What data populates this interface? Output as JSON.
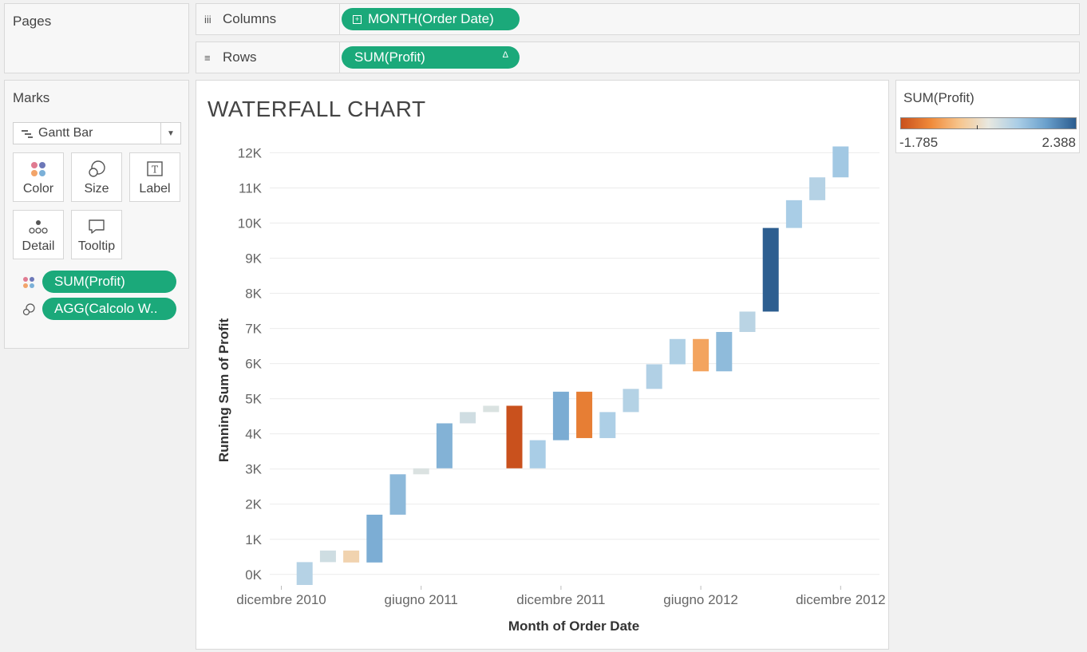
{
  "pages": {
    "title": "Pages"
  },
  "columns": {
    "label": "Columns",
    "pill": "MONTH(Order Date)"
  },
  "rows": {
    "label": "Rows",
    "pill": "SUM(Profit)",
    "pill_icon": "delta-icon"
  },
  "marks": {
    "title": "Marks",
    "mark_type": "Gantt Bar",
    "buttons": [
      {
        "label": "Color",
        "icon": "color-dots-icon"
      },
      {
        "label": "Size",
        "icon": "size-circles-icon"
      },
      {
        "label": "Label",
        "icon": "text-label-icon"
      },
      {
        "label": "Detail",
        "icon": "detail-dots-icon"
      },
      {
        "label": "Tooltip",
        "icon": "speech-bubble-icon"
      }
    ],
    "fields": [
      {
        "label": "SUM(Profit)",
        "icon": "color-dots-icon"
      },
      {
        "label": "AGG(Calcolo W..",
        "icon": "size-circles-icon"
      }
    ]
  },
  "legend": {
    "title": "SUM(Profit)",
    "min_label": "-1.785",
    "max_label": "2.388",
    "colors": [
      "#c9511d",
      "#f08a3a",
      "#f7c48b",
      "#e8e8e0",
      "#a9cde6",
      "#6aa0cc",
      "#2c5d8f"
    ]
  },
  "chart_data": {
    "type": "waterfall",
    "title": "WATERFALL CHART",
    "xlabel": "Month of Order Date",
    "ylabel": "Running Sum of Profit",
    "ylim": [
      -300,
      12600
    ],
    "yticks": [
      0,
      1000,
      2000,
      3000,
      4000,
      5000,
      6000,
      7000,
      8000,
      9000,
      10000,
      11000,
      12000
    ],
    "ytick_labels": [
      "0K",
      "1K",
      "2K",
      "3K",
      "4K",
      "5K",
      "6K",
      "7K",
      "8K",
      "9K",
      "10K",
      "11K",
      "12K"
    ],
    "xtick_labels": [
      "dicembre 2010",
      "giugno 2011",
      "dicembre 2011",
      "giugno 2012",
      "dicembre 2012"
    ],
    "xtick_month_index": [
      0,
      6,
      12,
      18,
      24
    ],
    "first_month_index": 1,
    "bars": [
      {
        "month": "gennaio 2011",
        "start": -300,
        "end": 350
      },
      {
        "month": "febbraio 2011",
        "start": 350,
        "end": 680
      },
      {
        "month": "marzo 2011",
        "start": 680,
        "end": 340
      },
      {
        "month": "aprile 2011",
        "start": 340,
        "end": 1700
      },
      {
        "month": "maggio 2011",
        "start": 1700,
        "end": 2850
      },
      {
        "month": "giugno 2011",
        "start": 2850,
        "end": 3020
      },
      {
        "month": "luglio 2011",
        "start": 3020,
        "end": 4300
      },
      {
        "month": "agosto 2011",
        "start": 4300,
        "end": 4620
      },
      {
        "month": "settembre 2011",
        "start": 4620,
        "end": 4800
      },
      {
        "month": "ottobre 2011",
        "start": 4800,
        "end": 3020
      },
      {
        "month": "novembre 2011",
        "start": 3020,
        "end": 3820
      },
      {
        "month": "dicembre 2011",
        "start": 3820,
        "end": 5200
      },
      {
        "month": "gennaio 2012",
        "start": 5200,
        "end": 3880
      },
      {
        "month": "febbraio 2012",
        "start": 3880,
        "end": 4620
      },
      {
        "month": "marzo 2012",
        "start": 4620,
        "end": 5280
      },
      {
        "month": "aprile 2012",
        "start": 5280,
        "end": 5980
      },
      {
        "month": "maggio 2012",
        "start": 5980,
        "end": 6700
      },
      {
        "month": "giugno 2012",
        "start": 6700,
        "end": 5780
      },
      {
        "month": "luglio 2012",
        "start": 5780,
        "end": 6900
      },
      {
        "month": "agosto 2012",
        "start": 6900,
        "end": 7480
      },
      {
        "month": "settembre 2012",
        "start": 7480,
        "end": 9860
      },
      {
        "month": "ottobre 2012",
        "start": 9860,
        "end": 10650
      },
      {
        "month": "novembre 2012",
        "start": 10650,
        "end": 11300
      },
      {
        "month": "dicembre 2012",
        "start": 11300,
        "end": 12180
      }
    ],
    "grid": true,
    "legend": "right"
  }
}
